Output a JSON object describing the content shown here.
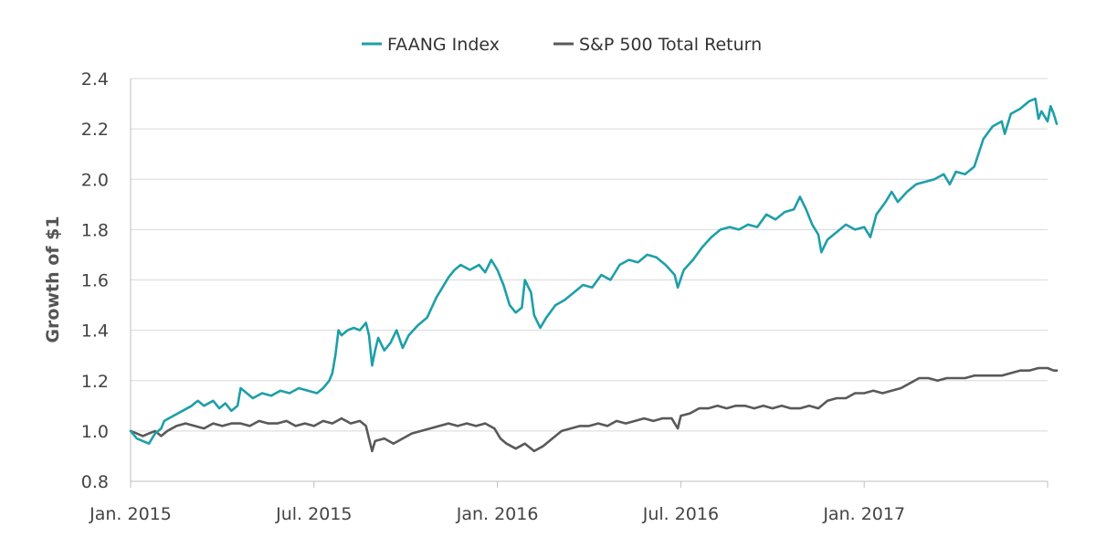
{
  "chart_data": {
    "type": "line",
    "title": "",
    "xlabel": "",
    "ylabel": "Growth of $1",
    "ylim": [
      0.8,
      2.4
    ],
    "yticks": [
      "0.8",
      "1.0",
      "1.2",
      "1.4",
      "1.6",
      "1.8",
      "2.0",
      "2.2",
      "2.4"
    ],
    "xlim": [
      0,
      30
    ],
    "xticks": [
      {
        "label": "Jan. 2015",
        "value": 0
      },
      {
        "label": "Jul. 2015",
        "value": 6
      },
      {
        "label": "Jan. 2016",
        "value": 12
      },
      {
        "label": "Jul. 2016",
        "value": 18
      },
      {
        "label": "Jan. 2017",
        "value": 24
      }
    ],
    "grid": true,
    "legend_position": "top-center",
    "x_unit": "months since Jan. 2015",
    "series": [
      {
        "name": "FAANG Index",
        "color": "#1e9fa8",
        "points": [
          [
            0,
            1.0
          ],
          [
            0.2,
            0.97
          ],
          [
            0.4,
            0.96
          ],
          [
            0.6,
            0.95
          ],
          [
            0.8,
            0.99
          ],
          [
            1.0,
            1.01
          ],
          [
            1.1,
            1.04
          ],
          [
            1.4,
            1.06
          ],
          [
            1.7,
            1.08
          ],
          [
            2.0,
            1.1
          ],
          [
            2.2,
            1.12
          ],
          [
            2.4,
            1.1
          ],
          [
            2.7,
            1.12
          ],
          [
            2.9,
            1.09
          ],
          [
            3.1,
            1.11
          ],
          [
            3.3,
            1.08
          ],
          [
            3.5,
            1.1
          ],
          [
            3.6,
            1.17
          ],
          [
            3.8,
            1.15
          ],
          [
            4.0,
            1.13
          ],
          [
            4.3,
            1.15
          ],
          [
            4.6,
            1.14
          ],
          [
            4.9,
            1.16
          ],
          [
            5.2,
            1.15
          ],
          [
            5.5,
            1.17
          ],
          [
            5.8,
            1.16
          ],
          [
            6.1,
            1.15
          ],
          [
            6.3,
            1.17
          ],
          [
            6.5,
            1.2
          ],
          [
            6.6,
            1.23
          ],
          [
            6.7,
            1.3
          ],
          [
            6.8,
            1.4
          ],
          [
            6.9,
            1.38
          ],
          [
            7.1,
            1.4
          ],
          [
            7.3,
            1.41
          ],
          [
            7.5,
            1.4
          ],
          [
            7.7,
            1.43
          ],
          [
            7.8,
            1.38
          ],
          [
            7.9,
            1.26
          ],
          [
            8.0,
            1.32
          ],
          [
            8.1,
            1.37
          ],
          [
            8.3,
            1.32
          ],
          [
            8.5,
            1.35
          ],
          [
            8.7,
            1.4
          ],
          [
            8.9,
            1.33
          ],
          [
            9.1,
            1.38
          ],
          [
            9.4,
            1.42
          ],
          [
            9.7,
            1.45
          ],
          [
            10.0,
            1.53
          ],
          [
            10.2,
            1.57
          ],
          [
            10.4,
            1.61
          ],
          [
            10.6,
            1.64
          ],
          [
            10.8,
            1.66
          ],
          [
            11.1,
            1.64
          ],
          [
            11.4,
            1.66
          ],
          [
            11.6,
            1.63
          ],
          [
            11.8,
            1.68
          ],
          [
            12.0,
            1.64
          ],
          [
            12.2,
            1.58
          ],
          [
            12.4,
            1.5
          ],
          [
            12.6,
            1.47
          ],
          [
            12.8,
            1.49
          ],
          [
            12.9,
            1.6
          ],
          [
            13.1,
            1.55
          ],
          [
            13.2,
            1.46
          ],
          [
            13.4,
            1.41
          ],
          [
            13.6,
            1.45
          ],
          [
            13.9,
            1.5
          ],
          [
            14.2,
            1.52
          ],
          [
            14.5,
            1.55
          ],
          [
            14.8,
            1.58
          ],
          [
            15.1,
            1.57
          ],
          [
            15.4,
            1.62
          ],
          [
            15.7,
            1.6
          ],
          [
            16.0,
            1.66
          ],
          [
            16.3,
            1.68
          ],
          [
            16.6,
            1.67
          ],
          [
            16.9,
            1.7
          ],
          [
            17.2,
            1.69
          ],
          [
            17.5,
            1.66
          ],
          [
            17.8,
            1.62
          ],
          [
            17.9,
            1.57
          ],
          [
            18.1,
            1.64
          ],
          [
            18.4,
            1.68
          ],
          [
            18.7,
            1.73
          ],
          [
            19.0,
            1.77
          ],
          [
            19.3,
            1.8
          ],
          [
            19.6,
            1.81
          ],
          [
            19.9,
            1.8
          ],
          [
            20.2,
            1.82
          ],
          [
            20.5,
            1.81
          ],
          [
            20.8,
            1.86
          ],
          [
            21.1,
            1.84
          ],
          [
            21.4,
            1.87
          ],
          [
            21.7,
            1.88
          ],
          [
            21.9,
            1.93
          ],
          [
            22.1,
            1.88
          ],
          [
            22.3,
            1.82
          ],
          [
            22.5,
            1.78
          ],
          [
            22.6,
            1.71
          ],
          [
            22.8,
            1.76
          ],
          [
            23.1,
            1.79
          ],
          [
            23.4,
            1.82
          ],
          [
            23.7,
            1.8
          ],
          [
            24.0,
            1.81
          ],
          [
            24.2,
            1.77
          ],
          [
            24.4,
            1.86
          ],
          [
            24.7,
            1.91
          ],
          [
            24.9,
            1.95
          ],
          [
            25.1,
            1.91
          ],
          [
            25.4,
            1.95
          ],
          [
            25.7,
            1.98
          ],
          [
            26.0,
            1.99
          ],
          [
            26.3,
            2.0
          ],
          [
            26.6,
            2.02
          ],
          [
            26.8,
            1.98
          ],
          [
            27.0,
            2.03
          ],
          [
            27.3,
            2.02
          ],
          [
            27.6,
            2.05
          ],
          [
            27.9,
            2.16
          ],
          [
            28.2,
            2.21
          ],
          [
            28.5,
            2.23
          ],
          [
            28.6,
            2.18
          ],
          [
            28.8,
            2.26
          ],
          [
            29.1,
            2.28
          ],
          [
            29.4,
            2.31
          ],
          [
            29.6,
            2.32
          ],
          [
            29.7,
            2.24
          ],
          [
            29.8,
            2.27
          ],
          [
            30.0,
            2.23
          ],
          [
            30.1,
            2.29
          ],
          [
            30.2,
            2.26
          ],
          [
            30.3,
            2.22
          ]
        ]
      },
      {
        "name": "S&P 500 Total Return",
        "color": "#595959",
        "points": [
          [
            0,
            1.0
          ],
          [
            0.2,
            0.99
          ],
          [
            0.4,
            0.98
          ],
          [
            0.6,
            0.99
          ],
          [
            0.8,
            1.0
          ],
          [
            1.0,
            0.98
          ],
          [
            1.2,
            1.0
          ],
          [
            1.5,
            1.02
          ],
          [
            1.8,
            1.03
          ],
          [
            2.1,
            1.02
          ],
          [
            2.4,
            1.01
          ],
          [
            2.7,
            1.03
          ],
          [
            3.0,
            1.02
          ],
          [
            3.3,
            1.03
          ],
          [
            3.6,
            1.03
          ],
          [
            3.9,
            1.02
          ],
          [
            4.2,
            1.04
          ],
          [
            4.5,
            1.03
          ],
          [
            4.8,
            1.03
          ],
          [
            5.1,
            1.04
          ],
          [
            5.4,
            1.02
          ],
          [
            5.7,
            1.03
          ],
          [
            6.0,
            1.02
          ],
          [
            6.3,
            1.04
          ],
          [
            6.6,
            1.03
          ],
          [
            6.9,
            1.05
          ],
          [
            7.2,
            1.03
          ],
          [
            7.5,
            1.04
          ],
          [
            7.7,
            1.02
          ],
          [
            7.8,
            0.97
          ],
          [
            7.9,
            0.92
          ],
          [
            8.0,
            0.96
          ],
          [
            8.3,
            0.97
          ],
          [
            8.6,
            0.95
          ],
          [
            8.9,
            0.97
          ],
          [
            9.2,
            0.99
          ],
          [
            9.5,
            1.0
          ],
          [
            9.8,
            1.01
          ],
          [
            10.1,
            1.02
          ],
          [
            10.4,
            1.03
          ],
          [
            10.7,
            1.02
          ],
          [
            11.0,
            1.03
          ],
          [
            11.3,
            1.02
          ],
          [
            11.6,
            1.03
          ],
          [
            11.9,
            1.01
          ],
          [
            12.1,
            0.97
          ],
          [
            12.3,
            0.95
          ],
          [
            12.6,
            0.93
          ],
          [
            12.9,
            0.95
          ],
          [
            13.2,
            0.92
          ],
          [
            13.5,
            0.94
          ],
          [
            13.8,
            0.97
          ],
          [
            14.1,
            1.0
          ],
          [
            14.4,
            1.01
          ],
          [
            14.7,
            1.02
          ],
          [
            15.0,
            1.02
          ],
          [
            15.3,
            1.03
          ],
          [
            15.6,
            1.02
          ],
          [
            15.9,
            1.04
          ],
          [
            16.2,
            1.03
          ],
          [
            16.5,
            1.04
          ],
          [
            16.8,
            1.05
          ],
          [
            17.1,
            1.04
          ],
          [
            17.4,
            1.05
          ],
          [
            17.7,
            1.05
          ],
          [
            17.9,
            1.01
          ],
          [
            18.0,
            1.06
          ],
          [
            18.3,
            1.07
          ],
          [
            18.6,
            1.09
          ],
          [
            18.9,
            1.09
          ],
          [
            19.2,
            1.1
          ],
          [
            19.5,
            1.09
          ],
          [
            19.8,
            1.1
          ],
          [
            20.1,
            1.1
          ],
          [
            20.4,
            1.09
          ],
          [
            20.7,
            1.1
          ],
          [
            21.0,
            1.09
          ],
          [
            21.3,
            1.1
          ],
          [
            21.6,
            1.09
          ],
          [
            21.9,
            1.09
          ],
          [
            22.2,
            1.1
          ],
          [
            22.5,
            1.09
          ],
          [
            22.8,
            1.12
          ],
          [
            23.1,
            1.13
          ],
          [
            23.4,
            1.13
          ],
          [
            23.7,
            1.15
          ],
          [
            24.0,
            1.15
          ],
          [
            24.3,
            1.16
          ],
          [
            24.6,
            1.15
          ],
          [
            24.9,
            1.16
          ],
          [
            25.2,
            1.17
          ],
          [
            25.5,
            1.19
          ],
          [
            25.8,
            1.21
          ],
          [
            26.1,
            1.21
          ],
          [
            26.4,
            1.2
          ],
          [
            26.7,
            1.21
          ],
          [
            27.0,
            1.21
          ],
          [
            27.3,
            1.21
          ],
          [
            27.6,
            1.22
          ],
          [
            27.9,
            1.22
          ],
          [
            28.2,
            1.22
          ],
          [
            28.5,
            1.22
          ],
          [
            28.8,
            1.23
          ],
          [
            29.1,
            1.24
          ],
          [
            29.4,
            1.24
          ],
          [
            29.7,
            1.25
          ],
          [
            30.0,
            1.25
          ],
          [
            30.2,
            1.24
          ],
          [
            30.3,
            1.24
          ]
        ]
      }
    ]
  }
}
